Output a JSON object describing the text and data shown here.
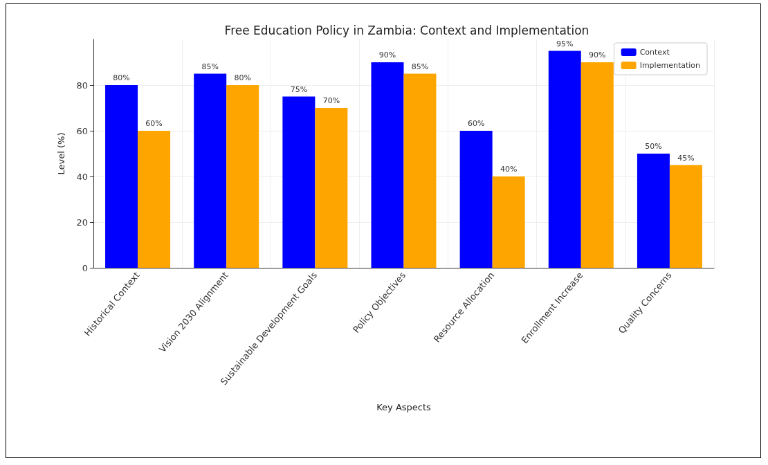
{
  "chart_data": {
    "type": "bar",
    "title": "Free Education Policy in Zambia: Context and Implementation",
    "xlabel": "Key Aspects",
    "ylabel": "Level (%)",
    "categories": [
      "Historical Context",
      "Vision 2030 Alignment",
      "Sustainable Development Goals",
      "Policy Objectives",
      "Resource Allocation",
      "Enrollment Increase",
      "Quality Concerns"
    ],
    "series": [
      {
        "name": "Context",
        "color": "#0000ff",
        "values": [
          80,
          85,
          75,
          90,
          60,
          95,
          50
        ],
        "value_labels": [
          "80%",
          "85%",
          "75%",
          "90%",
          "60%",
          "95%",
          "50%"
        ]
      },
      {
        "name": "Implementation",
        "color": "#ffa500",
        "values": [
          60,
          80,
          70,
          85,
          40,
          90,
          45
        ],
        "value_labels": [
          "60%",
          "80%",
          "70%",
          "85%",
          "40%",
          "90%",
          "45%"
        ]
      }
    ],
    "ylim": [
      0,
      100
    ],
    "yticks": [
      0,
      20,
      40,
      60,
      80
    ],
    "grid": true,
    "legend": "top right"
  }
}
